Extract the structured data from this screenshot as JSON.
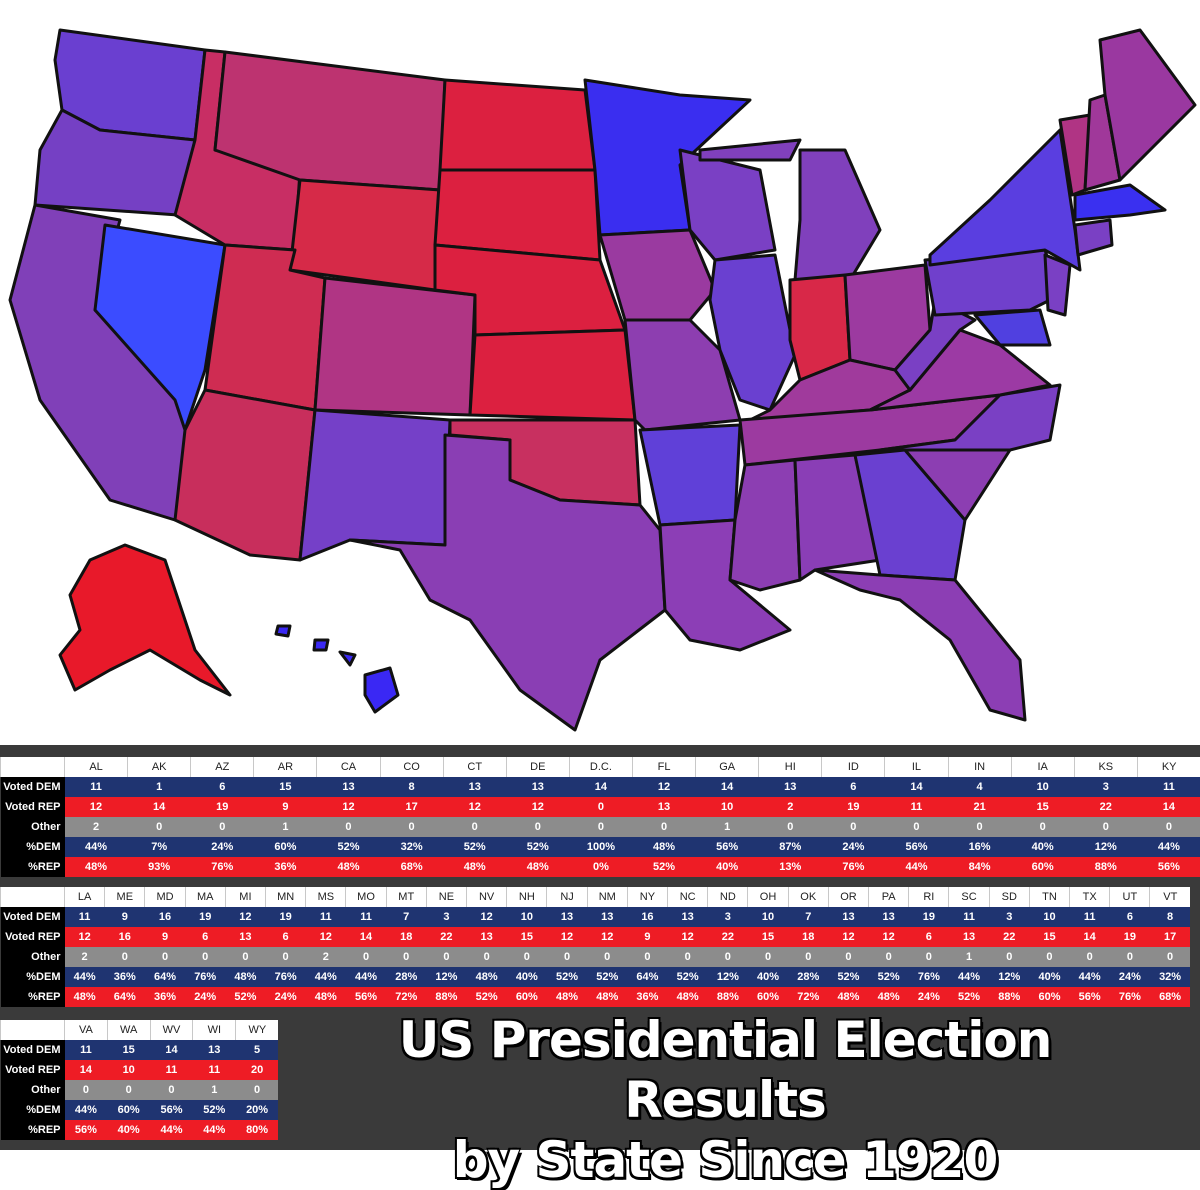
{
  "title_line1": "US Presidential Election Results",
  "title_line2": "by State Since 1920",
  "row_labels": [
    "Voted DEM",
    "Voted REP",
    "Other",
    "%DEM",
    "%REP"
  ],
  "colors": {
    "dem_row": "#1f3471",
    "rep_row": "#ee1c25",
    "other_row": "#8c8c8c",
    "panel_bg": "#3a3a3a"
  },
  "tables": [
    {
      "states": [
        "AL",
        "AK",
        "AZ",
        "AR",
        "CA",
        "CO",
        "CT",
        "DE",
        "D.C.",
        "FL",
        "GA",
        "HI",
        "ID",
        "IL",
        "IN",
        "IA",
        "KS",
        "KY"
      ],
      "voted_dem": [
        "11",
        "1",
        "6",
        "15",
        "13",
        "8",
        "13",
        "13",
        "14",
        "12",
        "14",
        "13",
        "6",
        "14",
        "4",
        "10",
        "3",
        "11"
      ],
      "voted_rep": [
        "12",
        "14",
        "19",
        "9",
        "12",
        "17",
        "12",
        "12",
        "0",
        "13",
        "10",
        "2",
        "19",
        "11",
        "21",
        "15",
        "22",
        "14"
      ],
      "other": [
        "2",
        "0",
        "0",
        "1",
        "0",
        "0",
        "0",
        "0",
        "0",
        "0",
        "1",
        "0",
        "0",
        "0",
        "0",
        "0",
        "0",
        "0"
      ],
      "pct_dem": [
        "44%",
        "7%",
        "24%",
        "60%",
        "52%",
        "32%",
        "52%",
        "52%",
        "100%",
        "48%",
        "56%",
        "87%",
        "24%",
        "56%",
        "16%",
        "40%",
        "12%",
        "44%"
      ],
      "pct_rep": [
        "48%",
        "93%",
        "76%",
        "36%",
        "48%",
        "68%",
        "48%",
        "48%",
        "0%",
        "52%",
        "40%",
        "13%",
        "76%",
        "44%",
        "84%",
        "60%",
        "88%",
        "56%"
      ]
    },
    {
      "states": [
        "LA",
        "ME",
        "MD",
        "MA",
        "MI",
        "MN",
        "MS",
        "MO",
        "MT",
        "NE",
        "NV",
        "NH",
        "NJ",
        "NM",
        "NY",
        "NC",
        "ND",
        "OH",
        "OK",
        "OR",
        "PA",
        "RI",
        "SC",
        "SD",
        "TN",
        "TX",
        "UT",
        "VT"
      ],
      "voted_dem": [
        "11",
        "9",
        "16",
        "19",
        "12",
        "19",
        "11",
        "11",
        "7",
        "3",
        "12",
        "10",
        "13",
        "13",
        "16",
        "13",
        "3",
        "10",
        "7",
        "13",
        "13",
        "19",
        "11",
        "3",
        "10",
        "11",
        "6",
        "8"
      ],
      "voted_rep": [
        "12",
        "16",
        "9",
        "6",
        "13",
        "6",
        "12",
        "14",
        "18",
        "22",
        "13",
        "15",
        "12",
        "12",
        "9",
        "12",
        "22",
        "15",
        "18",
        "12",
        "12",
        "6",
        "13",
        "22",
        "15",
        "14",
        "19",
        "17"
      ],
      "other": [
        "2",
        "0",
        "0",
        "0",
        "0",
        "0",
        "2",
        "0",
        "0",
        "0",
        "0",
        "0",
        "0",
        "0",
        "0",
        "0",
        "0",
        "0",
        "0",
        "0",
        "0",
        "0",
        "1",
        "0",
        "0",
        "0",
        "0",
        "0"
      ],
      "pct_dem": [
        "44%",
        "36%",
        "64%",
        "76%",
        "48%",
        "76%",
        "44%",
        "44%",
        "28%",
        "12%",
        "48%",
        "40%",
        "52%",
        "52%",
        "64%",
        "52%",
        "12%",
        "40%",
        "28%",
        "52%",
        "52%",
        "76%",
        "44%",
        "12%",
        "40%",
        "44%",
        "24%",
        "32%"
      ],
      "pct_rep": [
        "48%",
        "64%",
        "36%",
        "24%",
        "52%",
        "24%",
        "48%",
        "56%",
        "72%",
        "88%",
        "52%",
        "60%",
        "48%",
        "48%",
        "36%",
        "48%",
        "88%",
        "60%",
        "72%",
        "48%",
        "48%",
        "24%",
        "52%",
        "88%",
        "60%",
        "56%",
        "76%",
        "68%"
      ]
    },
    {
      "states": [
        "VA",
        "WA",
        "WV",
        "WI",
        "WY"
      ],
      "voted_dem": [
        "11",
        "15",
        "14",
        "13",
        "5"
      ],
      "voted_rep": [
        "14",
        "10",
        "11",
        "11",
        "20"
      ],
      "other": [
        "0",
        "0",
        "0",
        "1",
        "0"
      ],
      "pct_dem": [
        "44%",
        "60%",
        "56%",
        "52%",
        "20%"
      ],
      "pct_rep": [
        "56%",
        "40%",
        "44%",
        "44%",
        "80%"
      ]
    }
  ],
  "map_states": [
    {
      "id": "WA",
      "fill": "#6a3fd0"
    },
    {
      "id": "OR",
      "fill": "#7540c4"
    },
    {
      "id": "CA",
      "fill": "#8040b8"
    },
    {
      "id": "NV",
      "fill": "#3b4cff"
    },
    {
      "id": "ID",
      "fill": "#c82e64"
    },
    {
      "id": "MT",
      "fill": "#bd3370"
    },
    {
      "id": "WY",
      "fill": "#d62a48"
    },
    {
      "id": "UT",
      "fill": "#cf2c52"
    },
    {
      "id": "AZ",
      "fill": "#c82e5c"
    },
    {
      "id": "CO",
      "fill": "#b03584"
    },
    {
      "id": "NM",
      "fill": "#7540c8"
    },
    {
      "id": "ND",
      "fill": "#dc2040"
    },
    {
      "id": "SD",
      "fill": "#dc2040"
    },
    {
      "id": "NE",
      "fill": "#dc2040"
    },
    {
      "id": "KS",
      "fill": "#dc2040"
    },
    {
      "id": "OK",
      "fill": "#c83060"
    },
    {
      "id": "TX",
      "fill": "#8a3eb4"
    },
    {
      "id": "MN",
      "fill": "#3a2ef0"
    },
    {
      "id": "IA",
      "fill": "#9a3aa0"
    },
    {
      "id": "MO",
      "fill": "#8d3eb0"
    },
    {
      "id": "AR",
      "fill": "#6040d8"
    },
    {
      "id": "LA",
      "fill": "#8c3eb6"
    },
    {
      "id": "WI",
      "fill": "#7a40c4"
    },
    {
      "id": "IL",
      "fill": "#6a40d0"
    },
    {
      "id": "MI",
      "fill": "#8040bc"
    },
    {
      "id": "IN",
      "fill": "#d82848"
    },
    {
      "id": "OH",
      "fill": "#9c3aa0"
    },
    {
      "id": "KY",
      "fill": "#a03a9c"
    },
    {
      "id": "TN",
      "fill": "#9c3aa0"
    },
    {
      "id": "MS",
      "fill": "#8c3eb2"
    },
    {
      "id": "AL",
      "fill": "#8a3eb6"
    },
    {
      "id": "GA",
      "fill": "#6a40d0"
    },
    {
      "id": "FL",
      "fill": "#8c3eb4"
    },
    {
      "id": "SC",
      "fill": "#8c3eb2"
    },
    {
      "id": "NC",
      "fill": "#7a40c4"
    },
    {
      "id": "VA",
      "fill": "#9c3aa4"
    },
    {
      "id": "WV",
      "fill": "#7a40c4"
    },
    {
      "id": "PA",
      "fill": "#7040cc"
    },
    {
      "id": "NY",
      "fill": "#5a3ee0"
    },
    {
      "id": "VT",
      "fill": "#b03484"
    },
    {
      "id": "NH",
      "fill": "#a0389a"
    },
    {
      "id": "ME",
      "fill": "#9a38a0"
    },
    {
      "id": "MA",
      "fill": "#3a30f0"
    },
    {
      "id": "CT",
      "fill": "#7a40c4"
    },
    {
      "id": "NJ",
      "fill": "#7a40c4"
    },
    {
      "id": "MD",
      "fill": "#5040e0"
    },
    {
      "id": "AK",
      "fill": "#e8192a"
    },
    {
      "id": "HI",
      "fill": "#3a28f4"
    }
  ]
}
